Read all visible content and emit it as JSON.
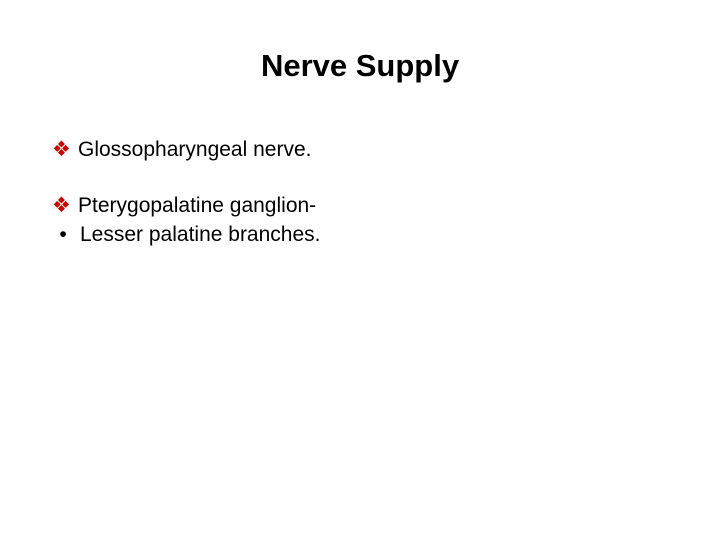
{
  "slide": {
    "title": "Nerve Supply",
    "title_fontsize": 31,
    "title_color": "#000000",
    "body_fontsize": 21,
    "text_color": "#000000",
    "diamond_bullet": "❖",
    "diamond_color": "#cc0000",
    "dot_bullet": "•",
    "dot_color": "#000000",
    "items": [
      {
        "kind": "diamond",
        "text": "Glossopharyngeal nerve."
      },
      {
        "kind": "gap"
      },
      {
        "kind": "diamond",
        "text": "Pterygopalatine ganglion-"
      },
      {
        "kind": "dot",
        "text": "Lesser palatine branches."
      }
    ]
  }
}
